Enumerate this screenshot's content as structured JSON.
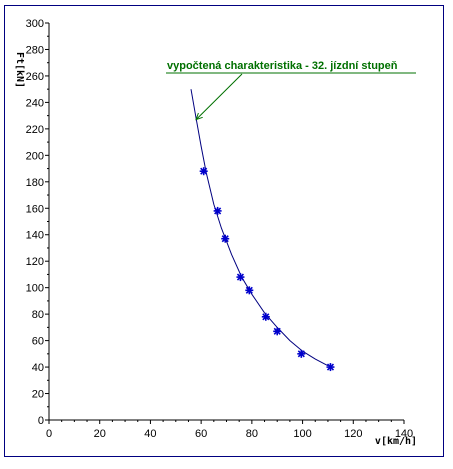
{
  "chart_data": {
    "type": "scatter",
    "title": "",
    "xlabel": "v[km/h]",
    "ylabel": "Ft[kN]",
    "xlim": [
      0,
      140
    ],
    "ylim": [
      0,
      300
    ],
    "x_ticks": [
      0,
      20,
      40,
      60,
      80,
      100,
      120,
      140
    ],
    "y_ticks": [
      0,
      20,
      40,
      60,
      80,
      100,
      120,
      140,
      160,
      180,
      200,
      220,
      240,
      260,
      280,
      300
    ],
    "grid": false,
    "series": [
      {
        "name": "",
        "kind": "points",
        "color": "#0000cc",
        "x": [
          61,
          66.5,
          69.5,
          75.5,
          79,
          85.5,
          90,
          99.5,
          111
        ],
        "y": [
          188,
          158,
          137,
          108,
          98,
          78,
          67,
          50,
          40
        ]
      },
      {
        "name": "vypočtená charakteristika - 32. jízdní stupeň",
        "kind": "line",
        "color": "#000080",
        "x": [
          56,
          58,
          60,
          62,
          65,
          68,
          72,
          76,
          80,
          85,
          90,
          95,
          100,
          105,
          110
        ],
        "y": [
          250,
          228,
          207,
          187,
          163,
          145,
          125,
          108,
          95,
          81,
          70,
          60,
          52,
          46,
          41
        ]
      }
    ],
    "annotations": [
      {
        "text": "vypočtená charakteristika - 32. jízdní stupeň",
        "color": "#007000",
        "points_to": [
          58,
          227
        ]
      }
    ]
  }
}
